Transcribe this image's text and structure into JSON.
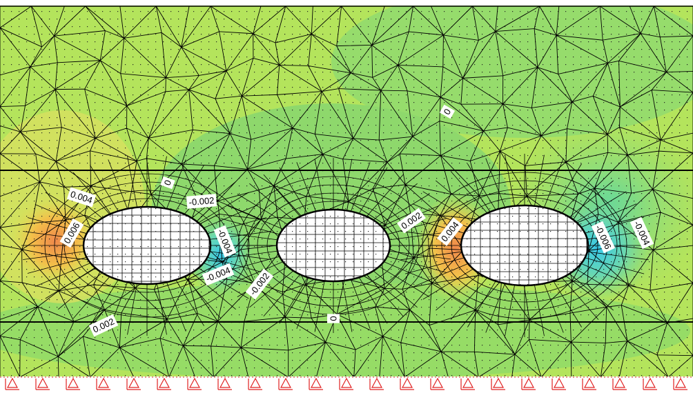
{
  "contour_labels": [
    "0",
    "0",
    "0.004",
    "0.006",
    "-0.002",
    "-0.004",
    "-0.004",
    "-0.002",
    "0.002",
    "0.004",
    "-0.006",
    "-0.004",
    "0.002",
    "0"
  ]
}
